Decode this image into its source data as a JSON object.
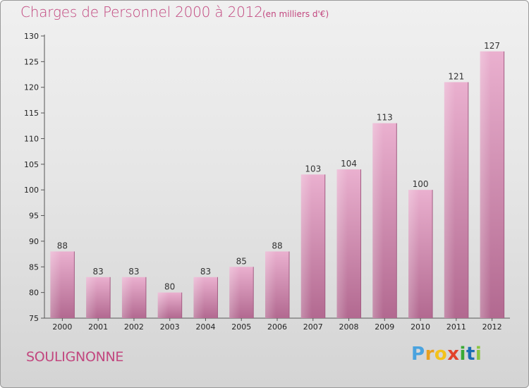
{
  "chart_data": {
    "type": "bar",
    "title": "Charges de Personnel 2000 à 2012",
    "subtitle": "(en milliers d'€)",
    "categories": [
      "2000",
      "2001",
      "2002",
      "2003",
      "2004",
      "2005",
      "2006",
      "2007",
      "2008",
      "2009",
      "2010",
      "2011",
      "2012"
    ],
    "values": [
      88,
      83,
      83,
      80,
      83,
      85,
      88,
      103,
      104,
      113,
      100,
      121,
      127
    ],
    "ylim": [
      75,
      130
    ],
    "yticks": [
      75,
      80,
      85,
      90,
      95,
      100,
      105,
      110,
      115,
      120,
      125,
      130
    ],
    "xlabel": "",
    "ylabel": "",
    "grid": false,
    "bar_color_top": "#e9aacb",
    "bar_color_bottom": "#b56c93"
  },
  "commune": "SOULIGNONNE",
  "logo": [
    "P",
    "r",
    "o",
    "x",
    "i",
    "t",
    "i"
  ],
  "title_color": "#c2477f"
}
